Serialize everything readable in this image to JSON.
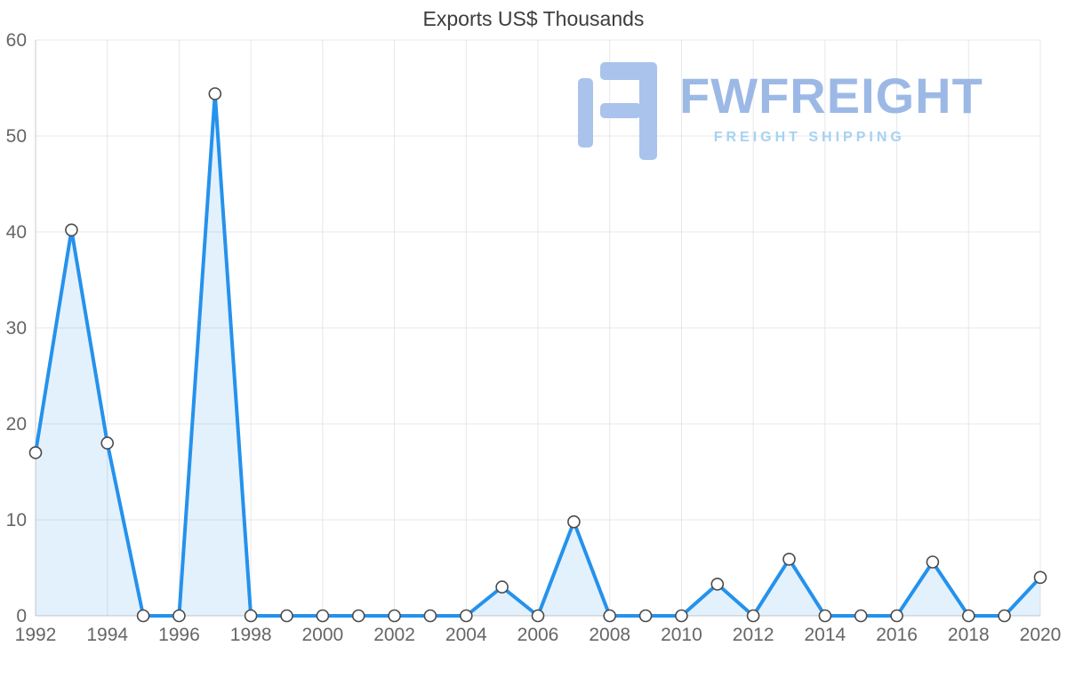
{
  "title": "Exports US$ Thousands",
  "watermark": {
    "brand": "FWFREIGHT",
    "tagline": "FREIGHT SHIPPING",
    "brand_color": "#9cb9e6",
    "tagline_color": "#a5d2f2",
    "icon_color": "#a9c3ec",
    "icon_name": "fwfreight-logo-icon"
  },
  "colors": {
    "line": "#2592ec",
    "area_fill": "rgba(37,146,236,0.13)",
    "marker_fill": "#ffffff",
    "marker_stroke": "#4a4a4a",
    "grid": "#e7e7e7",
    "axis": "#c9c9c9",
    "tick_text": "#666666",
    "title_text": "#3d3d3d"
  },
  "chart_data": {
    "type": "area",
    "title": "Exports US$ Thousands",
    "x": [
      1992,
      1993,
      1994,
      1995,
      1996,
      1997,
      1998,
      1999,
      2000,
      2001,
      2002,
      2003,
      2004,
      2005,
      2006,
      2007,
      2008,
      2009,
      2010,
      2011,
      2012,
      2013,
      2014,
      2015,
      2016,
      2017,
      2018,
      2019,
      2020
    ],
    "values": [
      17,
      40.2,
      18,
      0,
      0,
      54.4,
      0,
      0,
      0,
      0,
      0,
      0,
      0,
      3,
      0,
      9.8,
      0,
      0,
      0,
      3.3,
      0,
      5.9,
      0,
      0,
      0,
      5.6,
      0,
      0,
      4
    ],
    "xlabel": "",
    "ylabel": "",
    "xlim": [
      1992,
      2020
    ],
    "ylim": [
      0,
      60
    ],
    "y_ticks": [
      0,
      10,
      20,
      30,
      40,
      50,
      60
    ],
    "x_ticks": [
      1992,
      1994,
      1996,
      1998,
      2000,
      2002,
      2004,
      2006,
      2008,
      2010,
      2012,
      2014,
      2016,
      2018,
      2020
    ],
    "grid": true,
    "legend": "none",
    "marker": "circle-open"
  }
}
